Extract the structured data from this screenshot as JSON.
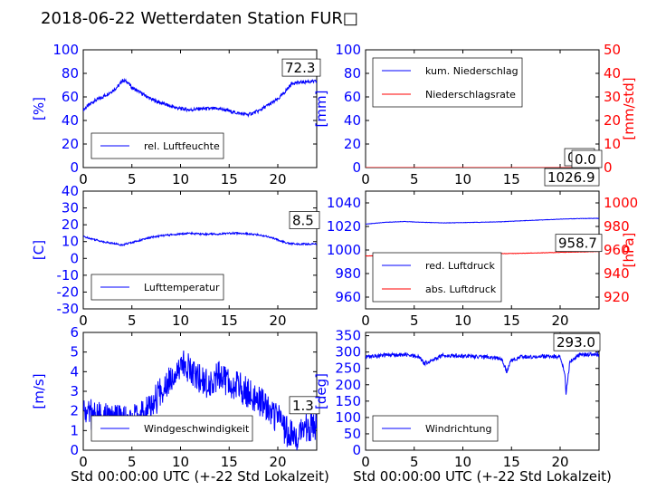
{
  "title": "2018-06-22 Wetterdaten Station FUR",
  "title_glyph": "□",
  "xlabel": "Std 00:00:00 UTC (+-22 Std Lokalzeit)",
  "colors": {
    "blue": "#0000ff",
    "red": "#ff0000",
    "axis": "#000000"
  },
  "chart_data": [
    {
      "id": "humidity",
      "type": "line",
      "ylabel": "[%]",
      "ylim": [
        0,
        100
      ],
      "yticks": [
        0,
        20,
        40,
        60,
        80,
        100
      ],
      "xlim": [
        0,
        24
      ],
      "xticks": [
        0,
        5,
        10,
        15,
        20
      ],
      "series": [
        {
          "name": "rel. Luftfeuchte",
          "color": "#0000ff",
          "x": [
            0,
            1,
            2,
            3,
            3.7,
            4,
            4.5,
            5,
            6,
            7,
            8,
            9,
            10,
            11,
            12,
            13,
            14,
            15,
            16,
            17,
            18,
            19,
            20,
            20.5,
            21,
            21.5,
            22,
            23,
            24
          ],
          "y": [
            49,
            56,
            60,
            65,
            70,
            74,
            73,
            68,
            63,
            58,
            55,
            52,
            50,
            49,
            50,
            50,
            50,
            48,
            46,
            45,
            48,
            53,
            58,
            62,
            67,
            72,
            72,
            73,
            73
          ]
        }
      ],
      "annotation": "72.3"
    },
    {
      "id": "rain",
      "type": "line",
      "ylabel": "[mm]",
      "ylim": [
        0,
        100
      ],
      "yticks": [
        0,
        20,
        40,
        60,
        80,
        100
      ],
      "ylabel2": "[mm/std]",
      "ylim2": [
        0,
        50
      ],
      "yticks2": [
        0,
        10,
        20,
        30,
        40,
        50
      ],
      "xlim": [
        0,
        24
      ],
      "xticks": [
        0,
        5,
        10,
        15,
        20
      ],
      "series": [
        {
          "name": "kum. Niederschlag",
          "color": "#0000ff",
          "axis": "left",
          "x": [
            0,
            24
          ],
          "y": [
            0,
            0
          ]
        },
        {
          "name": "Niederschlagsrate",
          "color": "#ff0000",
          "axis": "right",
          "x": [
            0,
            24
          ],
          "y": [
            0,
            0
          ]
        }
      ],
      "annotation": "0.0",
      "annotation2": "0.0"
    },
    {
      "id": "temp",
      "type": "line",
      "ylabel": "[C]",
      "ylim": [
        -30,
        40
      ],
      "yticks": [
        -30,
        -20,
        -10,
        0,
        10,
        20,
        30,
        40
      ],
      "xlim": [
        0,
        24
      ],
      "xticks": [
        0,
        5,
        10,
        15,
        20
      ],
      "series": [
        {
          "name": "Lufttemperatur",
          "color": "#0000ff",
          "x": [
            0,
            1,
            2,
            3,
            4,
            5,
            6,
            7,
            8,
            9,
            10,
            11,
            12,
            13,
            14,
            15,
            16,
            17,
            18,
            19,
            20,
            21,
            22,
            23,
            24
          ],
          "y": [
            13,
            11.5,
            10,
            9,
            8,
            9.5,
            11,
            12.5,
            13.5,
            14,
            14.5,
            15,
            14.5,
            14.5,
            14.5,
            15,
            15,
            14.5,
            14,
            13,
            11,
            9,
            8.5,
            8.5,
            8.5
          ]
        }
      ],
      "annotation": "8.5"
    },
    {
      "id": "pressure",
      "type": "line",
      "ylim": [
        950,
        1050
      ],
      "yticks": [
        960,
        980,
        1000,
        1020,
        1040
      ],
      "ylabel2": "[hPa]",
      "ylim2": [
        910,
        1010
      ],
      "yticks2": [
        920,
        940,
        960,
        980,
        1000
      ],
      "xlim": [
        0,
        24
      ],
      "xticks": [
        0,
        5,
        10,
        15,
        20
      ],
      "series": [
        {
          "name": "red. Luftdruck",
          "color": "#0000ff",
          "axis": "left",
          "x": [
            0,
            2,
            4,
            6,
            8,
            10,
            12,
            14,
            16,
            18,
            20,
            22,
            24
          ],
          "y": [
            1022,
            1023.5,
            1024.2,
            1023.5,
            1023,
            1023.3,
            1023.6,
            1024,
            1024.8,
            1025.5,
            1026.2,
            1026.7,
            1026.9
          ]
        },
        {
          "name": "abs. Luftdruck",
          "color": "#ff0000",
          "axis": "right",
          "x": [
            0,
            4,
            8,
            12,
            16,
            20,
            24
          ],
          "y": [
            955,
            955.5,
            956,
            956.5,
            957.2,
            958,
            958.7
          ]
        }
      ],
      "annotation": "1026.9",
      "annotation2": "958.7"
    },
    {
      "id": "wind",
      "type": "line",
      "ylabel": "[m/s]",
      "ylim": [
        0,
        6
      ],
      "yticks": [
        0,
        1,
        2,
        3,
        4,
        5,
        6
      ],
      "xlim": [
        0,
        24
      ],
      "xticks": [
        0,
        5,
        10,
        15,
        20
      ],
      "series": [
        {
          "name": "Windgeschwindigkeit",
          "color": "#0000ff",
          "x": [
            0,
            1,
            2,
            3,
            4,
            5,
            6,
            7,
            8,
            9,
            10,
            11,
            12,
            13,
            14,
            15,
            16,
            17,
            18,
            19,
            20,
            21,
            22,
            23,
            24
          ],
          "y": [
            2,
            1.8,
            1.6,
            1.6,
            1.5,
            1.5,
            1.7,
            2.2,
            3,
            3.8,
            4.4,
            4.2,
            3.6,
            3.3,
            3.8,
            3.4,
            3.2,
            2.9,
            2.6,
            2,
            1.6,
            0.9,
            0.6,
            1.2,
            1.3
          ]
        }
      ],
      "annotation": "1.3"
    },
    {
      "id": "direction",
      "type": "line",
      "ylabel": "[deg]",
      "ylim": [
        0,
        360
      ],
      "yticks": [
        0,
        50,
        100,
        150,
        200,
        250,
        300,
        350
      ],
      "xlim": [
        0,
        24
      ],
      "xticks": [
        0,
        5,
        10,
        15,
        20
      ],
      "series": [
        {
          "name": "Windrichtung",
          "color": "#0000ff",
          "x": [
            0,
            2,
            4,
            5.5,
            6,
            8,
            10,
            12,
            14,
            14.5,
            15,
            16,
            18,
            20,
            20.5,
            20.6,
            21,
            22,
            24
          ],
          "y": [
            285,
            290,
            292,
            285,
            265,
            290,
            288,
            286,
            280,
            240,
            275,
            285,
            287,
            286,
            230,
            175,
            270,
            292,
            293
          ]
        }
      ],
      "annotation": "293.0"
    }
  ]
}
